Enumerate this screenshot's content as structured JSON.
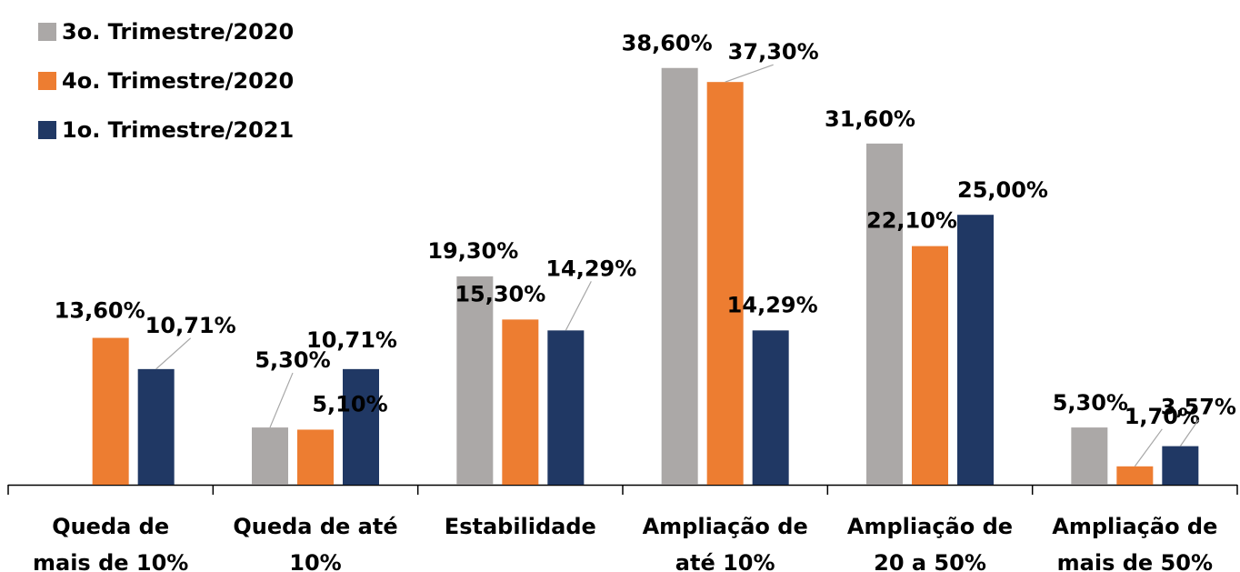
{
  "chart_data": {
    "type": "bar",
    "categories": [
      [
        "Queda de",
        "mais de 10%"
      ],
      [
        "Queda de até",
        "10%"
      ],
      [
        "Estabilidade"
      ],
      [
        "Ampliação de",
        "até 10%"
      ],
      [
        "Ampliação de",
        "20 a 50%"
      ],
      [
        "Ampliação de",
        "mais de 50%"
      ]
    ],
    "series": [
      {
        "name": "3o. Trimestre/2020",
        "color": "#ABA8A7",
        "values": [
          null,
          5.3,
          19.3,
          38.6,
          31.6,
          5.3
        ],
        "labels": [
          "",
          "5,30%",
          "19,30%",
          "38,60%",
          "31,60%",
          "5,30%"
        ]
      },
      {
        "name": "4o. Trimestre/2020",
        "color": "#ED7D31",
        "values": [
          13.6,
          5.1,
          15.3,
          37.3,
          22.1,
          1.7
        ],
        "labels": [
          "13,60%",
          "5,10%",
          "15,30%",
          "37,30%",
          "22,10%",
          "1,70%"
        ]
      },
      {
        "name": "1o. Trimestre/2021",
        "color": "#203864",
        "values": [
          10.71,
          10.71,
          14.29,
          14.29,
          25.0,
          3.57
        ],
        "labels": [
          "10,71%",
          "10,71%",
          "14,29%",
          "14,29%",
          "25,00%",
          "3,57%"
        ]
      }
    ],
    "ylim": [
      0,
      39
    ],
    "grid": false,
    "legend_position": "top-left",
    "title": "",
    "xlabel": "",
    "ylabel": ""
  }
}
